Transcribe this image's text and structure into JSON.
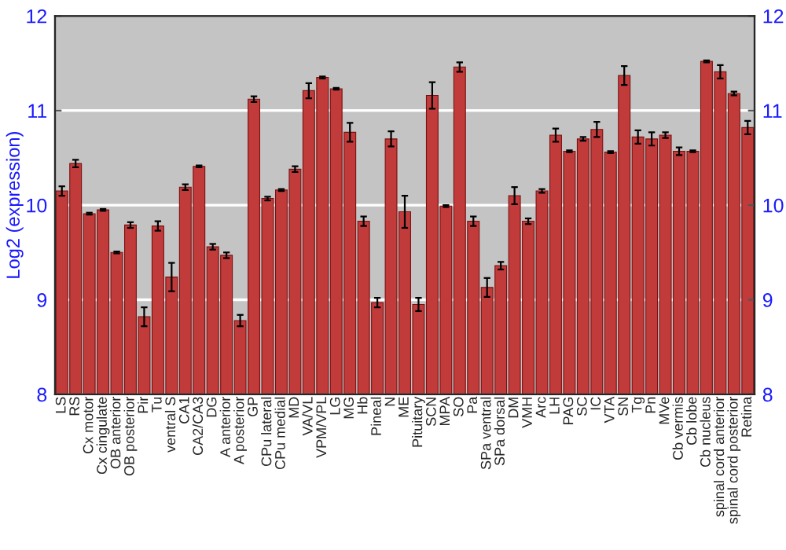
{
  "chart_data": {
    "type": "bar",
    "ylabel": "Log2 (expression)",
    "categories": [
      "LS",
      "RS",
      "Cx motor",
      "Cx cingulate",
      "OB anterior",
      "OB posterior",
      "Pir",
      "Tu",
      "ventral S",
      "CA1",
      "CA2/CA3",
      "DG",
      "A anterior",
      "A posterior",
      "GP",
      "CPu lateral",
      "CPu medial",
      "MD",
      "VA/VL",
      "VPM/VPL",
      "LG",
      "MG",
      "Hb",
      "Pineal",
      "N",
      "ME",
      "Pituitary",
      "SCN",
      "MPA",
      "SO",
      "Pa",
      "SPa ventral",
      "SPa dorsal",
      "DM",
      "VMH",
      "Arc",
      "LH",
      "PAG",
      "SC",
      "IC",
      "VTA",
      "SN",
      "Tg",
      "Pn",
      "MVe",
      "Cb vermis",
      "Cb lobe",
      "Cb nucleus",
      "spinal cord anterior",
      "spinal cord posterior",
      "Retina"
    ],
    "values": [
      10.15,
      10.44,
      9.91,
      9.95,
      9.5,
      9.79,
      8.82,
      9.78,
      9.24,
      10.19,
      10.41,
      9.56,
      9.47,
      8.78,
      11.12,
      10.07,
      10.16,
      10.38,
      11.21,
      11.35,
      11.23,
      10.77,
      9.83,
      8.97,
      10.7,
      9.93,
      8.95,
      11.16,
      9.99,
      11.46,
      9.83,
      9.13,
      9.36,
      10.1,
      9.83,
      10.15,
      10.74,
      10.57,
      10.7,
      10.8,
      10.56,
      11.37,
      10.72,
      10.7,
      10.74,
      10.57,
      10.57,
      11.52,
      11.41,
      11.18,
      10.82
    ],
    "errors": [
      0.05,
      0.04,
      0.01,
      0.01,
      0.01,
      0.03,
      0.1,
      0.05,
      0.15,
      0.03,
      0.01,
      0.03,
      0.03,
      0.06,
      0.03,
      0.02,
      0.01,
      0.03,
      0.08,
      0.01,
      0.01,
      0.1,
      0.05,
      0.05,
      0.08,
      0.17,
      0.07,
      0.14,
      0.01,
      0.05,
      0.05,
      0.1,
      0.04,
      0.09,
      0.03,
      0.02,
      0.07,
      0.01,
      0.02,
      0.08,
      0.01,
      0.1,
      0.07,
      0.07,
      0.03,
      0.04,
      0.01,
      0.01,
      0.07,
      0.02,
      0.07
    ],
    "color": "#c23b3b",
    "ylim": [
      8,
      12
    ],
    "yticks": [
      8,
      9,
      10,
      11,
      12
    ],
    "y2lim": [
      8,
      12
    ],
    "y2ticks": [
      8,
      9,
      10,
      11,
      12
    ],
    "grid": "y",
    "legend": false
  }
}
